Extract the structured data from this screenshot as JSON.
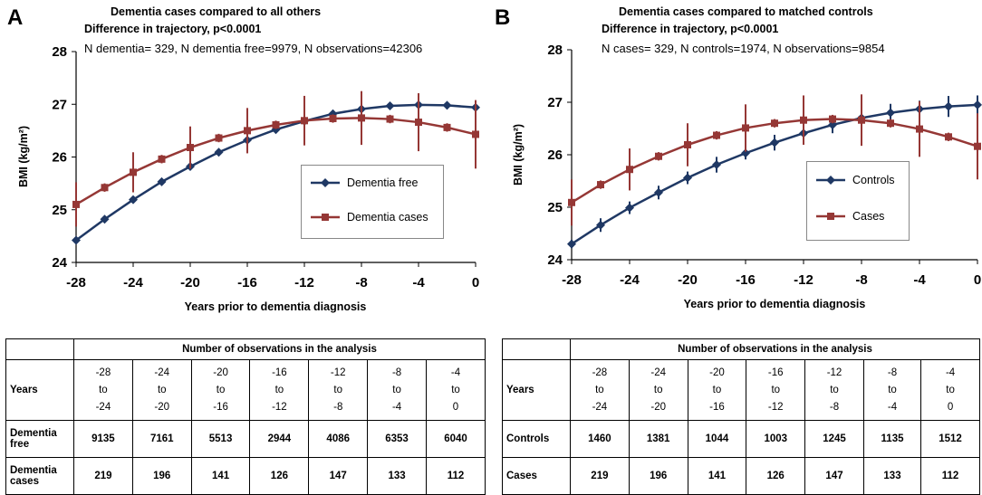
{
  "chart_data": [
    {
      "type": "line",
      "panel_letter": "A",
      "title": "Dementia cases compared to all others",
      "subtitle": "Difference in trajectory, p<0.0001",
      "n_info": "N dementia= 329, N dementia free=9979, N observations=42306",
      "xlabel": "Years prior to dementia diagnosis",
      "ylabel": "BMI (kg/m²)",
      "xlim": [
        -28,
        0
      ],
      "ylim": [
        24,
        28
      ],
      "x_ticks": [
        "-28",
        "-24",
        "-20",
        "-16",
        "-12",
        "-8",
        "-4",
        "0"
      ],
      "y_ticks": [
        "24",
        "25",
        "26",
        "27",
        "28"
      ],
      "legend_position": "right",
      "series": [
        {
          "name": "Dementia free",
          "color": "#1f3864",
          "marker": "diamond",
          "x": [
            -28,
            -26,
            -24,
            -22,
            -20,
            -18,
            -16,
            -14,
            -12,
            -10,
            -8,
            -6,
            -4,
            -2,
            0
          ],
          "y": [
            24.42,
            24.82,
            25.19,
            25.53,
            25.82,
            26.09,
            26.32,
            26.52,
            26.68,
            26.82,
            26.91,
            26.97,
            26.99,
            26.98,
            26.94
          ],
          "err": [
            0.05,
            0.05,
            0.05,
            0.05,
            0.05,
            0.05,
            0.05,
            0.05,
            0.05,
            0.05,
            0.05,
            0.05,
            0.05,
            0.05,
            0.05
          ]
        },
        {
          "name": "Dementia cases",
          "color": "#953735",
          "marker": "square",
          "x": [
            -28,
            -26,
            -24,
            -22,
            -20,
            -18,
            -16,
            -14,
            -12,
            -10,
            -8,
            -6,
            -4,
            -2,
            0
          ],
          "y": [
            25.1,
            25.42,
            25.71,
            25.96,
            26.18,
            26.36,
            26.5,
            26.61,
            26.69,
            26.73,
            26.74,
            26.72,
            26.66,
            26.56,
            26.43
          ],
          "err": [
            0.42,
            0.08,
            0.38,
            0.08,
            0.4,
            0.08,
            0.43,
            0.08,
            0.47,
            0.08,
            0.51,
            0.08,
            0.55,
            0.08,
            0.65
          ]
        }
      ]
    },
    {
      "type": "line",
      "panel_letter": "B",
      "title": "Dementia cases compared to matched controls",
      "subtitle": "Difference in trajectory, p<0.0001",
      "n_info": "N cases= 329, N controls=1974, N observations=9854",
      "xlabel": "Years prior to dementia diagnosis",
      "ylabel": "BMI (kg/m²)",
      "xlim": [
        -28,
        0
      ],
      "ylim": [
        24,
        28
      ],
      "x_ticks": [
        "-28",
        "-24",
        "-20",
        "-16",
        "-12",
        "-8",
        "-4",
        "0"
      ],
      "y_ticks": [
        "24",
        "25",
        "26",
        "27",
        "28"
      ],
      "legend_position": "right",
      "series": [
        {
          "name": "Controls",
          "color": "#1f3864",
          "marker": "diamond",
          "x": [
            -28,
            -26,
            -24,
            -22,
            -20,
            -18,
            -16,
            -14,
            -12,
            -10,
            -8,
            -6,
            -4,
            -2,
            0
          ],
          "y": [
            24.3,
            24.66,
            24.99,
            25.28,
            25.56,
            25.81,
            26.03,
            26.23,
            26.41,
            26.57,
            26.7,
            26.8,
            26.87,
            26.92,
            26.95
          ],
          "err": [
            0.08,
            0.13,
            0.12,
            0.13,
            0.12,
            0.15,
            0.12,
            0.15,
            0.13,
            0.16,
            0.14,
            0.17,
            0.16,
            0.2,
            0.18
          ]
        },
        {
          "name": "Cases",
          "color": "#953735",
          "marker": "square",
          "x": [
            -28,
            -26,
            -24,
            -22,
            -20,
            -18,
            -16,
            -14,
            -12,
            -10,
            -8,
            -6,
            -4,
            -2,
            0
          ],
          "y": [
            25.09,
            25.43,
            25.72,
            25.97,
            26.19,
            26.37,
            26.51,
            26.6,
            26.66,
            26.68,
            26.66,
            26.6,
            26.49,
            26.34,
            26.16
          ],
          "err": [
            0.44,
            0.08,
            0.4,
            0.08,
            0.41,
            0.08,
            0.45,
            0.08,
            0.47,
            0.08,
            0.49,
            0.08,
            0.53,
            0.08,
            0.63
          ]
        }
      ]
    }
  ],
  "tables": [
    {
      "header": "Number of observations in the analysis",
      "years_label": "Years",
      "years": [
        [
          "-28",
          "to",
          "-24"
        ],
        [
          "-24",
          "to",
          "-20"
        ],
        [
          "-20",
          "to",
          "-16"
        ],
        [
          "-16",
          "to",
          "-12"
        ],
        [
          "-12",
          "to",
          "-8"
        ],
        [
          "-8",
          "to",
          "-4"
        ],
        [
          "-4",
          "to",
          "0"
        ]
      ],
      "rows": [
        {
          "label": [
            "Dementia",
            "free"
          ],
          "values": [
            "9135",
            "7161",
            "5513",
            "2944",
            "4086",
            "6353",
            "6040"
          ]
        },
        {
          "label": [
            "Dementia",
            "cases"
          ],
          "values": [
            "219",
            "196",
            "141",
            "126",
            "147",
            "133",
            "112"
          ]
        }
      ]
    },
    {
      "header": "Number of observations in the analysis",
      "years_label": "Years",
      "years": [
        [
          "-28",
          "to",
          "-24"
        ],
        [
          "-24",
          "to",
          "-20"
        ],
        [
          "-20",
          "to",
          "-16"
        ],
        [
          "-16",
          "to",
          "-12"
        ],
        [
          "-12",
          "to",
          "-8"
        ],
        [
          "-8",
          "to",
          "-4"
        ],
        [
          "-4",
          "to",
          "0"
        ]
      ],
      "rows": [
        {
          "label": [
            "Controls"
          ],
          "values": [
            "1460",
            "1381",
            "1044",
            "1003",
            "1245",
            "1135",
            "1512"
          ]
        },
        {
          "label": [
            "Cases"
          ],
          "values": [
            "219",
            "196",
            "141",
            "126",
            "147",
            "133",
            "112"
          ]
        }
      ]
    }
  ]
}
